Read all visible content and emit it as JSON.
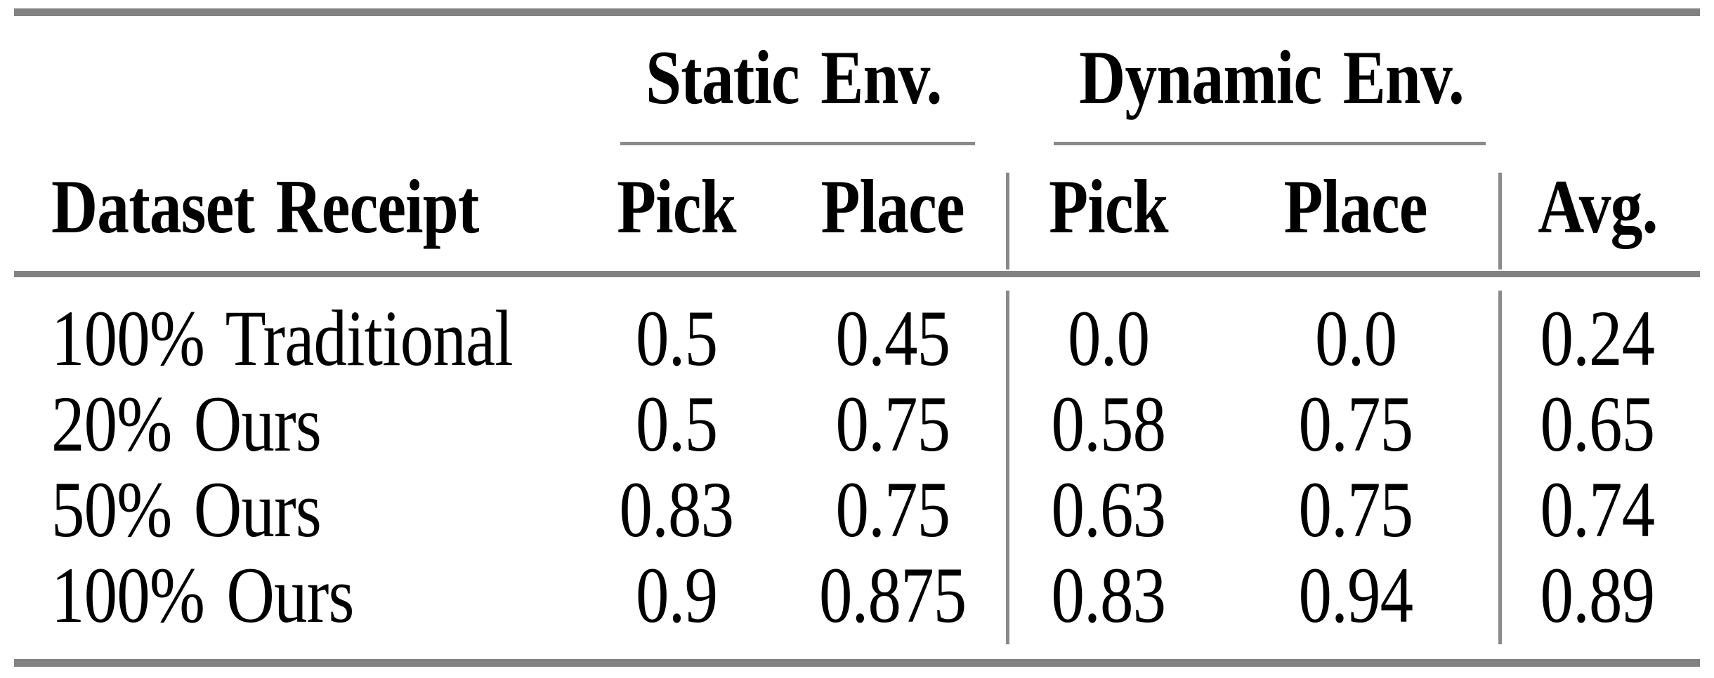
{
  "page": {
    "background": "#ffffff",
    "rule_color": "#828282",
    "text_color": "#000000"
  },
  "table": {
    "column_groups": [
      {
        "label": "Static Env."
      },
      {
        "label": "Dynamic Env."
      }
    ],
    "header": {
      "dataset": "Dataset Receipt",
      "static_pick": "Pick",
      "static_place": "Place",
      "dynamic_pick": "Pick",
      "dynamic_place": "Place",
      "avg": "Avg."
    },
    "rows": [
      {
        "dataset": "100% Traditional",
        "static_pick": "0.5",
        "static_place": "0.45",
        "dynamic_pick": "0.0",
        "dynamic_place": "0.0",
        "avg": "0.24"
      },
      {
        "dataset": "20% Ours",
        "static_pick": "0.5",
        "static_place": "0.75",
        "dynamic_pick": "0.58",
        "dynamic_place": "0.75",
        "avg": "0.65"
      },
      {
        "dataset": "50% Ours",
        "static_pick": "0.83",
        "static_place": "0.75",
        "dynamic_pick": "0.63",
        "dynamic_place": "0.75",
        "avg": "0.74"
      },
      {
        "dataset": "100% Ours",
        "static_pick": "0.9",
        "static_place": "0.875",
        "dynamic_pick": "0.83",
        "dynamic_place": "0.94",
        "avg": "0.89"
      }
    ]
  },
  "chart_data": {
    "type": "table",
    "columns": [
      "Dataset Receipt",
      "Static Env. Pick",
      "Static Env. Place",
      "Dynamic Env. Pick",
      "Dynamic Env. Place",
      "Avg."
    ],
    "rows": [
      [
        "100% Traditional",
        0.5,
        0.45,
        0.0,
        0.0,
        0.24
      ],
      [
        "20% Ours",
        0.5,
        0.75,
        0.58,
        0.75,
        0.65
      ],
      [
        "50% Ours",
        0.83,
        0.75,
        0.63,
        0.75,
        0.74
      ],
      [
        "100% Ours",
        0.9,
        0.875,
        0.83,
        0.94,
        0.89
      ]
    ]
  }
}
